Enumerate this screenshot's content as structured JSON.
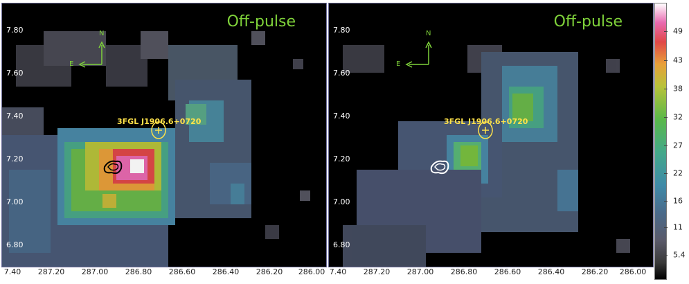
{
  "panels": [
    {
      "title": "Off-pulse",
      "source_label": "3FGL J1906.6+0720",
      "compass": {
        "north": "N",
        "east": "E"
      },
      "y_ticks": [
        "7.80",
        "7.60",
        "7.40",
        "7.20",
        "7.00",
        "6.80"
      ],
      "x_ticks": [
        "7.40",
        "287.20",
        "287.00",
        "286.80",
        "286.60",
        "286.40",
        "286.20",
        "286.00"
      ]
    },
    {
      "title": "Off-pulse",
      "source_label": "3FGL J1906.6+0720",
      "compass": {
        "north": "N",
        "east": "E"
      },
      "y_ticks": [
        "7.80",
        "7.60",
        "7.40",
        "7.20",
        "7.00",
        "6.80"
      ],
      "x_ticks": [
        "7.40",
        "287.20",
        "287.00",
        "286.80",
        "286.60",
        "286.40",
        "286.20",
        "286.00"
      ]
    }
  ],
  "colorbar": {
    "ticks": [
      "49",
      "43",
      "38",
      "32",
      "27",
      "22",
      "16",
      "11",
      "5.4"
    ]
  },
  "colors": {
    "label_yellow": "#ffe24a",
    "title_green": "#7fd23a",
    "compass_green": "#7fd23a"
  }
}
